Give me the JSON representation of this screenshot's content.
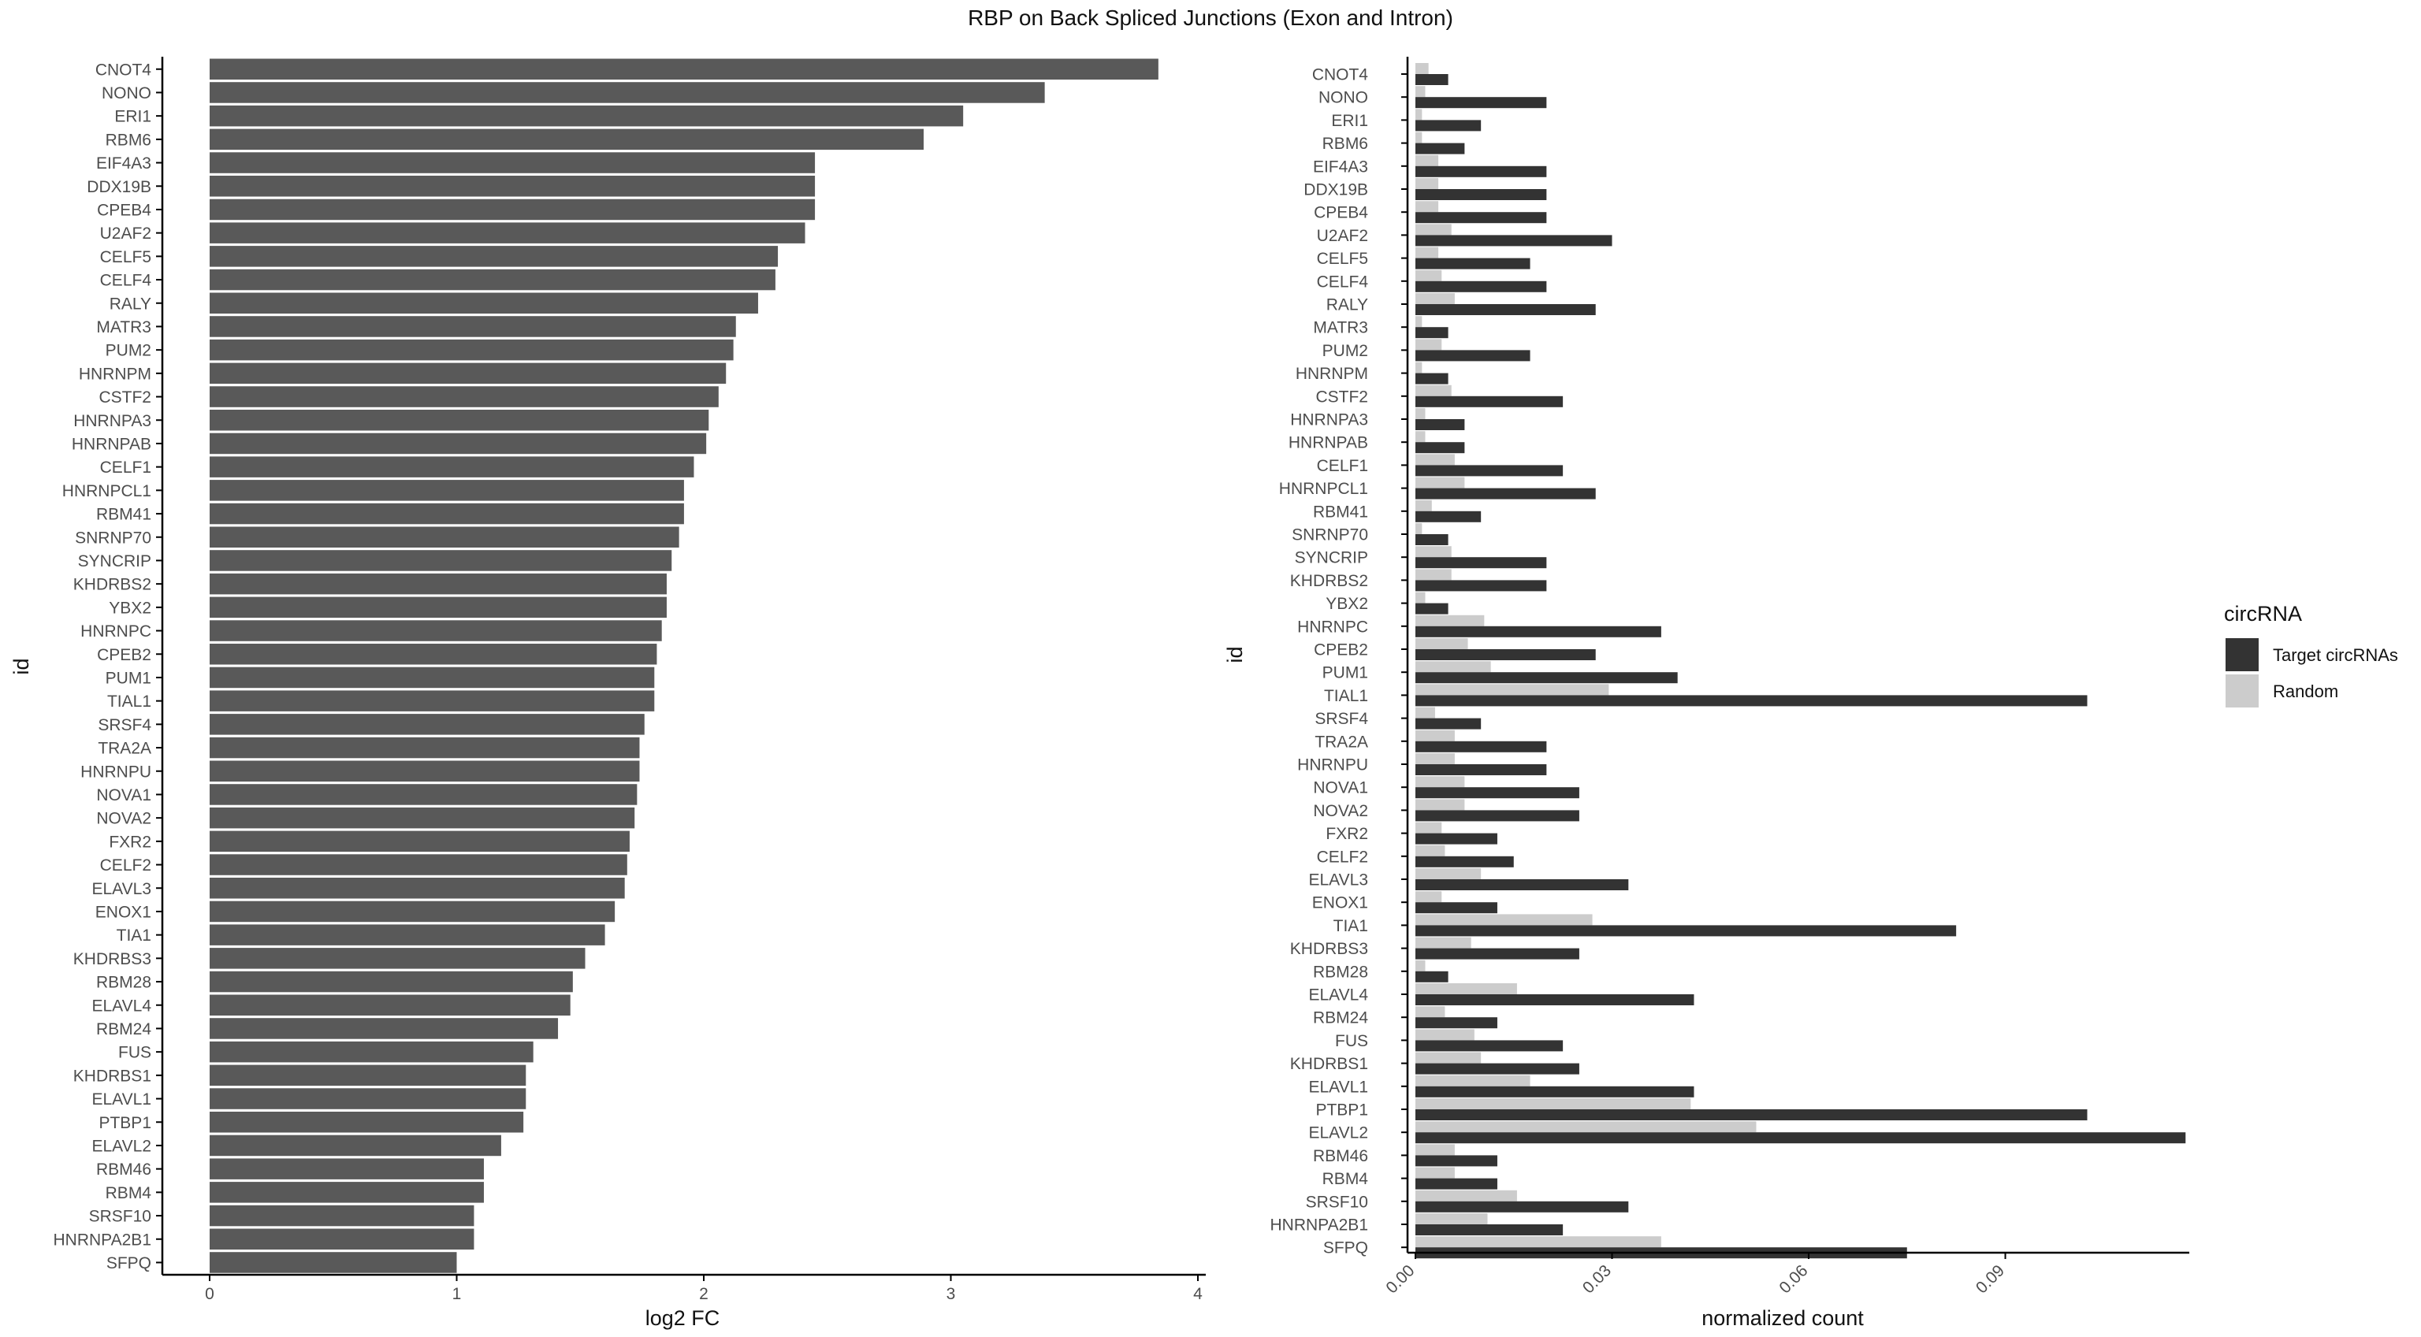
{
  "title": "RBP on Back Spliced Junctions (Exon and Intron)",
  "chart_data": [
    {
      "type": "bar",
      "orientation": "horizontal",
      "xlabel": "log2 FC",
      "ylabel": "id",
      "xlim": [
        0,
        4
      ],
      "xticks": [
        "0",
        "1",
        "2",
        "3",
        "4"
      ],
      "bar_color": "#595959",
      "categories": [
        "CNOT4",
        "NONO",
        "ERI1",
        "RBM6",
        "EIF4A3",
        "DDX19B",
        "CPEB4",
        "U2AF2",
        "CELF5",
        "CELF4",
        "RALY",
        "MATR3",
        "PUM2",
        "HNRNPM",
        "CSTF2",
        "HNRNPA3",
        "HNRNPAB",
        "CELF1",
        "HNRNPCL1",
        "RBM41",
        "SNRNP70",
        "SYNCRIP",
        "KHDRBS2",
        "YBX2",
        "HNRNPC",
        "CPEB2",
        "PUM1",
        "TIAL1",
        "SRSF4",
        "TRA2A",
        "HNRNPU",
        "NOVA1",
        "NOVA2",
        "FXR2",
        "CELF2",
        "ELAVL3",
        "ENOX1",
        "TIA1",
        "KHDRBS3",
        "RBM28",
        "ELAVL4",
        "RBM24",
        "FUS",
        "KHDRBS1",
        "ELAVL1",
        "PTBP1",
        "ELAVL2",
        "RBM46",
        "RBM4",
        "SRSF10",
        "HNRNPA2B1",
        "SFPQ"
      ],
      "values": [
        3.84,
        3.38,
        3.05,
        2.89,
        2.45,
        2.45,
        2.45,
        2.41,
        2.3,
        2.29,
        2.22,
        2.13,
        2.12,
        2.09,
        2.06,
        2.02,
        2.01,
        1.96,
        1.92,
        1.92,
        1.9,
        1.87,
        1.85,
        1.85,
        1.83,
        1.81,
        1.8,
        1.8,
        1.76,
        1.74,
        1.74,
        1.73,
        1.72,
        1.7,
        1.69,
        1.68,
        1.64,
        1.6,
        1.52,
        1.47,
        1.46,
        1.41,
        1.31,
        1.28,
        1.28,
        1.27,
        1.18,
        1.11,
        1.11,
        1.07,
        1.07,
        1.0
      ]
    },
    {
      "type": "bar",
      "orientation": "horizontal",
      "grouped": true,
      "xlabel": "normalized count",
      "ylabel": "id",
      "xlim": [
        0,
        0.12
      ],
      "xticks": [
        "0.00",
        "0.03",
        "0.06",
        "0.09"
      ],
      "legend_title": "circRNA",
      "legend_position": "right",
      "categories": [
        "CNOT4",
        "NONO",
        "ERI1",
        "RBM6",
        "EIF4A3",
        "DDX19B",
        "CPEB4",
        "U2AF2",
        "CELF5",
        "CELF4",
        "RALY",
        "MATR3",
        "PUM2",
        "HNRNPM",
        "CSTF2",
        "HNRNPA3",
        "HNRNPAB",
        "CELF1",
        "HNRNPCL1",
        "RBM41",
        "SNRNP70",
        "SYNCRIP",
        "KHDRBS2",
        "YBX2",
        "HNRNPC",
        "CPEB2",
        "PUM1",
        "TIAL1",
        "SRSF4",
        "TRA2A",
        "HNRNPU",
        "NOVA1",
        "NOVA2",
        "FXR2",
        "CELF2",
        "ELAVL3",
        "ENOX1",
        "TIA1",
        "KHDRBS3",
        "RBM28",
        "ELAVL4",
        "RBM24",
        "FUS",
        "KHDRBS1",
        "ELAVL1",
        "PTBP1",
        "ELAVL2",
        "RBM46",
        "RBM4",
        "SRSF10",
        "HNRNPA2B1",
        "SFPQ"
      ],
      "series": [
        {
          "name": "Target circRNAs",
          "color": "#333333",
          "values": [
            0.005,
            0.02,
            0.01,
            0.0075,
            0.02,
            0.02,
            0.02,
            0.03,
            0.0175,
            0.02,
            0.0275,
            0.005,
            0.0175,
            0.005,
            0.0225,
            0.0075,
            0.0075,
            0.0225,
            0.0275,
            0.01,
            0.005,
            0.02,
            0.02,
            0.005,
            0.0375,
            0.0275,
            0.04,
            0.1025,
            0.01,
            0.02,
            0.02,
            0.025,
            0.025,
            0.0125,
            0.015,
            0.0325,
            0.0125,
            0.0825,
            0.025,
            0.005,
            0.0425,
            0.0125,
            0.0225,
            0.025,
            0.0425,
            0.1025,
            0.1175,
            0.0125,
            0.0125,
            0.0325,
            0.0225,
            0.075
          ]
        },
        {
          "name": "Random",
          "color": "#cccccc",
          "values": [
            0.002,
            0.0015,
            0.001,
            0.001,
            0.0035,
            0.0035,
            0.0035,
            0.0055,
            0.0035,
            0.004,
            0.006,
            0.001,
            0.004,
            0.001,
            0.0055,
            0.0015,
            0.0015,
            0.006,
            0.0075,
            0.0025,
            0.001,
            0.0055,
            0.0055,
            0.0015,
            0.0105,
            0.008,
            0.0115,
            0.0295,
            0.003,
            0.006,
            0.006,
            0.0075,
            0.0075,
            0.004,
            0.0045,
            0.01,
            0.004,
            0.027,
            0.0085,
            0.0015,
            0.0155,
            0.0045,
            0.009,
            0.01,
            0.0175,
            0.042,
            0.052,
            0.006,
            0.006,
            0.0155,
            0.011,
            0.0375
          ]
        }
      ]
    }
  ]
}
